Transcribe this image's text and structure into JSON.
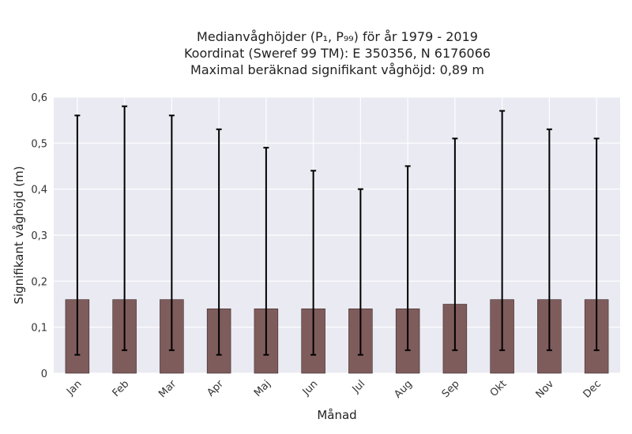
{
  "chart_data": {
    "type": "bar",
    "title_lines": [
      "Medianvåghöjder (P₁, P₉₉) för år 1979 - 2019",
      "Koordinat (Sweref 99 TM): E 350356, N 6176066",
      "Maximal beräknad signifikant våghöjd: 0,89 m"
    ],
    "xlabel": "Månad",
    "ylabel": "Signifikant våghöjd (m)",
    "ylim": [
      0,
      0.6
    ],
    "yticks": [
      {
        "value": 0,
        "label": "0"
      },
      {
        "value": 0.1,
        "label": "0,1"
      },
      {
        "value": 0.2,
        "label": "0,2"
      },
      {
        "value": 0.3,
        "label": "0,3"
      },
      {
        "value": 0.4,
        "label": "0,4"
      },
      {
        "value": 0.5,
        "label": "0,5"
      },
      {
        "value": 0.6,
        "label": "0,6"
      }
    ],
    "categories": [
      "Jan",
      "Feb",
      "Mar",
      "Apr",
      "Maj",
      "Jun",
      "Jul",
      "Aug",
      "Sep",
      "Okt",
      "Nov",
      "Dec"
    ],
    "values": [
      0.16,
      0.16,
      0.16,
      0.14,
      0.14,
      0.14,
      0.14,
      0.14,
      0.15,
      0.16,
      0.16,
      0.16
    ],
    "p1": [
      0.04,
      0.05,
      0.05,
      0.04,
      0.04,
      0.04,
      0.04,
      0.05,
      0.05,
      0.05,
      0.05,
      0.05
    ],
    "p99": [
      0.56,
      0.58,
      0.56,
      0.53,
      0.49,
      0.44,
      0.4,
      0.45,
      0.51,
      0.57,
      0.53,
      0.51
    ],
    "grid": true,
    "colors": {
      "bar": "#7f5c5c",
      "background": "#eaeaf2",
      "error": "#000000"
    }
  }
}
